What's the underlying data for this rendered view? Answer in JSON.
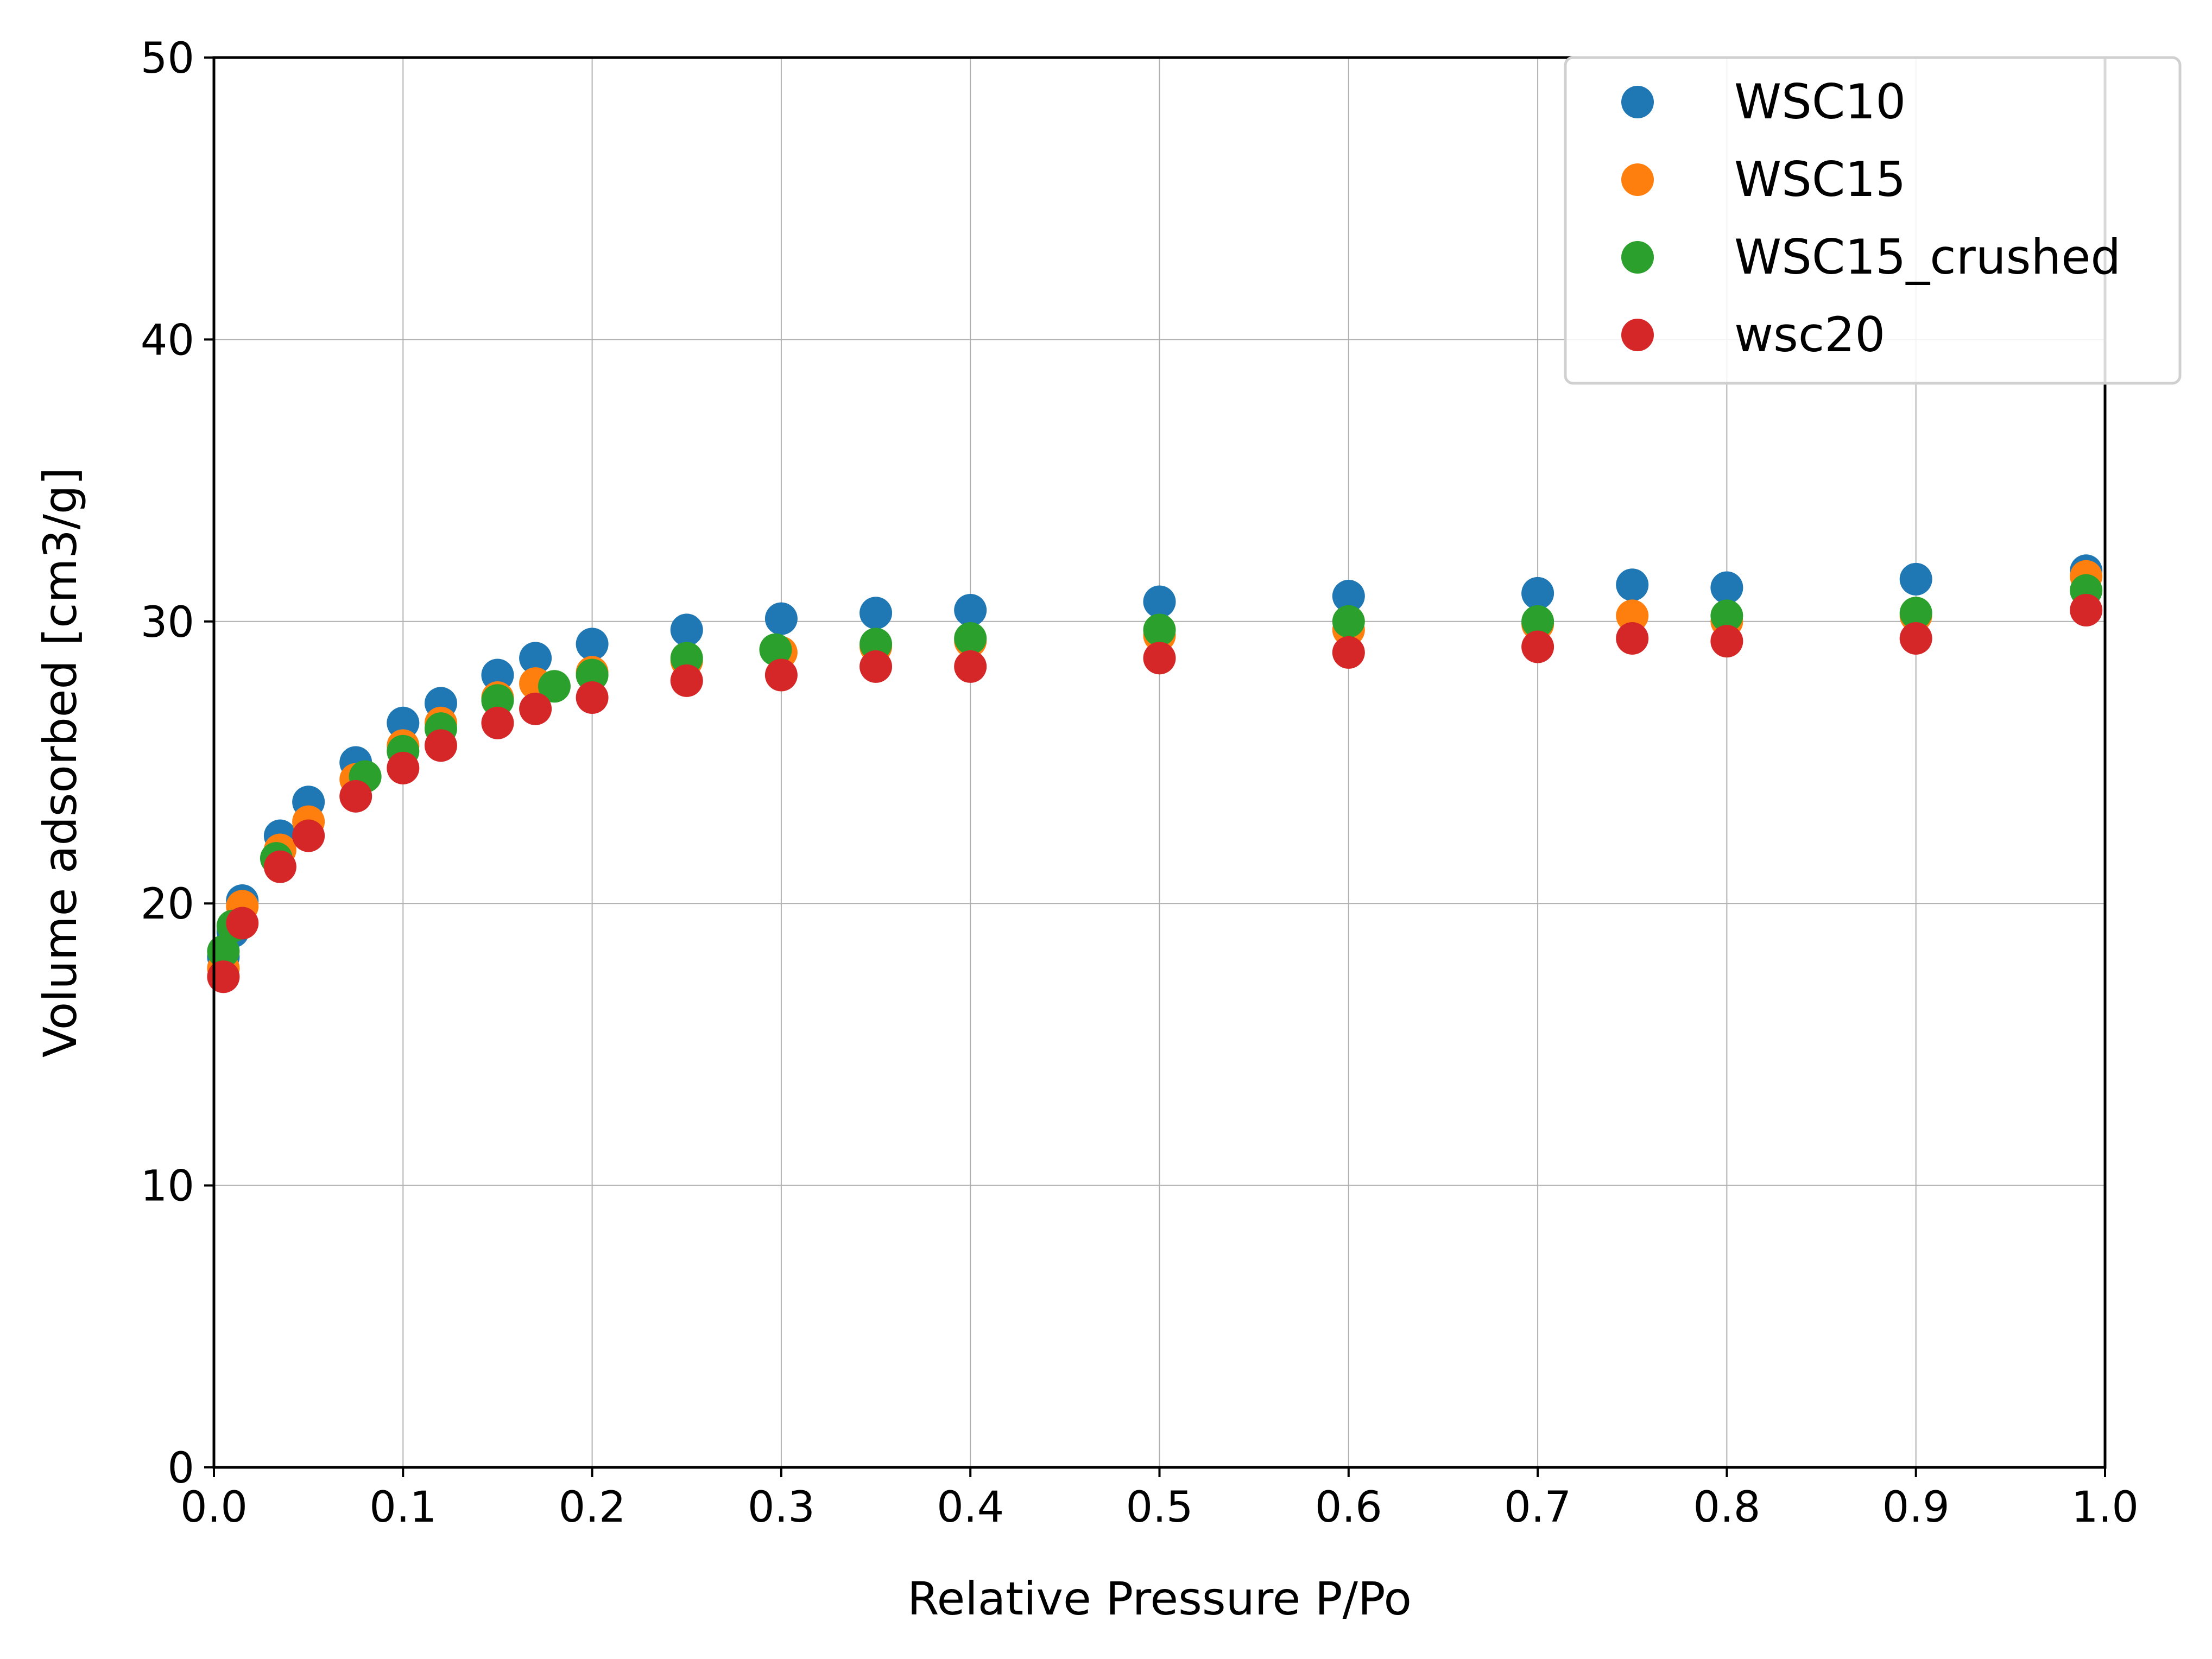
{
  "chart_data": {
    "type": "scatter",
    "title": "",
    "xlabel": "Relative Pressure P/Po",
    "ylabel": "Volume adsorbed [cm3/g]",
    "xlim": [
      0,
      1
    ],
    "ylim": [
      0,
      50
    ],
    "xticks": [
      "0.0",
      "0.1",
      "0.2",
      "0.3",
      "0.4",
      "0.5",
      "0.6",
      "0.7",
      "0.8",
      "0.9",
      "1.0"
    ],
    "yticks": [
      "0",
      "10",
      "20",
      "30",
      "40",
      "50"
    ],
    "grid": true,
    "legend_position": "top-right",
    "series": [
      {
        "name": "WSC10",
        "color": "#1f77b4",
        "x": [
          0.005,
          0.01,
          0.015,
          0.035,
          0.05,
          0.075,
          0.1,
          0.12,
          0.15,
          0.17,
          0.2,
          0.25,
          0.3,
          0.35,
          0.4,
          0.5,
          0.6,
          0.7,
          0.75,
          0.8,
          0.9,
          0.99
        ],
        "y": [
          18.1,
          19.0,
          20.1,
          22.4,
          23.6,
          25.0,
          26.4,
          27.1,
          28.1,
          28.7,
          29.2,
          29.7,
          30.1,
          30.3,
          30.4,
          30.7,
          30.9,
          31.0,
          31.3,
          31.2,
          31.5,
          31.8
        ]
      },
      {
        "name": "WSC15",
        "color": "#ff7f0e",
        "x": [
          0.005,
          0.015,
          0.035,
          0.05,
          0.075,
          0.1,
          0.12,
          0.15,
          0.17,
          0.2,
          0.25,
          0.3,
          0.35,
          0.4,
          0.5,
          0.6,
          0.7,
          0.75,
          0.8,
          0.9,
          0.99
        ],
        "y": [
          17.7,
          19.9,
          21.9,
          22.9,
          24.4,
          25.6,
          26.4,
          27.3,
          27.8,
          28.2,
          28.6,
          28.9,
          29.1,
          29.3,
          29.5,
          29.7,
          29.9,
          30.2,
          30.0,
          30.2,
          31.6
        ]
      },
      {
        "name": "WSC15_crushed",
        "color": "#2ca02c",
        "x": [
          0.005,
          0.01,
          0.033,
          0.08,
          0.1,
          0.12,
          0.15,
          0.18,
          0.2,
          0.25,
          0.297,
          0.35,
          0.4,
          0.5,
          0.6,
          0.7,
          0.8,
          0.9,
          0.99
        ],
        "y": [
          18.3,
          19.2,
          21.6,
          24.5,
          25.4,
          26.2,
          27.2,
          27.7,
          28.1,
          28.7,
          29.0,
          29.2,
          29.4,
          29.7,
          30.0,
          30.0,
          30.2,
          30.3,
          31.1
        ]
      },
      {
        "name": "wsc20",
        "color": "#d62728",
        "x": [
          0.005,
          0.015,
          0.035,
          0.05,
          0.075,
          0.1,
          0.12,
          0.15,
          0.17,
          0.2,
          0.25,
          0.3,
          0.35,
          0.4,
          0.5,
          0.6,
          0.7,
          0.75,
          0.8,
          0.9,
          0.99
        ],
        "y": [
          17.4,
          19.3,
          21.3,
          22.4,
          23.8,
          24.8,
          25.6,
          26.4,
          26.9,
          27.3,
          27.9,
          28.1,
          28.4,
          28.4,
          28.7,
          28.9,
          29.1,
          29.4,
          29.3,
          29.4,
          30.4
        ]
      }
    ]
  }
}
